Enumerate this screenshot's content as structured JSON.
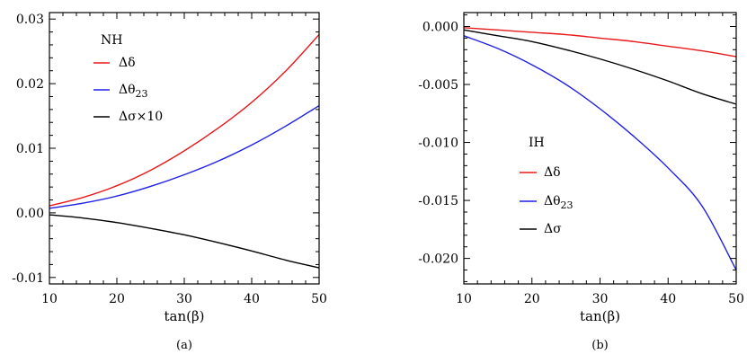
{
  "chart_data": [
    {
      "type": "line",
      "caption": "(a)",
      "xlabel": "tan(β)",
      "ylabel": "",
      "xlim": [
        10,
        50
      ],
      "ylim": [
        -0.011,
        0.031
      ],
      "xticks": [
        10,
        20,
        30,
        40,
        50
      ],
      "xtick_labels": [
        "10",
        "20",
        "30",
        "40",
        "50"
      ],
      "yticks": [
        -0.01,
        0,
        0.01,
        0.02,
        0.03
      ],
      "ytick_labels": [
        "-0.01",
        "0.00",
        "0.01",
        "0.02",
        "0.03"
      ],
      "legend_title": "NH",
      "legend_position": "top-left",
      "grid": false,
      "x": [
        10,
        15,
        20,
        25,
        30,
        35,
        40,
        45,
        50
      ],
      "series": [
        {
          "name": "Δδ",
          "color": "#e8191b",
          "values": [
            0.0011,
            0.0024,
            0.0042,
            0.0066,
            0.0096,
            0.0131,
            0.0171,
            0.0219,
            0.0276
          ]
        },
        {
          "name": "Δθ₂₃",
          "color": "#1f1fe6",
          "values": [
            0.0007,
            0.0015,
            0.0026,
            0.0041,
            0.0059,
            0.008,
            0.0105,
            0.0134,
            0.0166
          ]
        },
        {
          "name": "Δσ×10",
          "color": "#000000",
          "values": [
            -0.0003,
            -0.0008,
            -0.0015,
            -0.0024,
            -0.0034,
            -0.0046,
            -0.0059,
            -0.0073,
            -0.0085
          ]
        }
      ]
    },
    {
      "type": "line",
      "caption": "(b)",
      "xlabel": "tan(β)",
      "ylabel": "",
      "xlim": [
        10,
        50
      ],
      "ylim": [
        -0.0222,
        0.0012
      ],
      "xticks": [
        10,
        20,
        30,
        40,
        50
      ],
      "xtick_labels": [
        "10",
        "20",
        "30",
        "40",
        "50"
      ],
      "yticks": [
        0,
        -0.005,
        -0.01,
        -0.015,
        -0.02
      ],
      "ytick_labels": [
        "0.000",
        "-0.005",
        "-0.010",
        "-0.015",
        "-0.020"
      ],
      "legend_title": "IH",
      "legend_position": "center-left",
      "grid": false,
      "x": [
        10,
        15,
        20,
        25,
        30,
        35,
        40,
        45,
        50
      ],
      "series": [
        {
          "name": "Δδ",
          "color": "#e8191b",
          "values": [
            -0.0001,
            -0.0003,
            -0.0005,
            -0.0007,
            -0.001,
            -0.0013,
            -0.0017,
            -0.0021,
            -0.0026
          ]
        },
        {
          "name": "Δθ₂₃",
          "color": "#1f1fe6",
          "values": [
            -0.0008,
            -0.0019,
            -0.0033,
            -0.005,
            -0.0071,
            -0.0095,
            -0.0122,
            -0.0155,
            -0.021
          ]
        },
        {
          "name": "Δσ",
          "color": "#000000",
          "values": [
            -0.0003,
            -0.0008,
            -0.0013,
            -0.002,
            -0.0028,
            -0.0037,
            -0.0047,
            -0.0058,
            -0.0067
          ]
        }
      ]
    }
  ]
}
